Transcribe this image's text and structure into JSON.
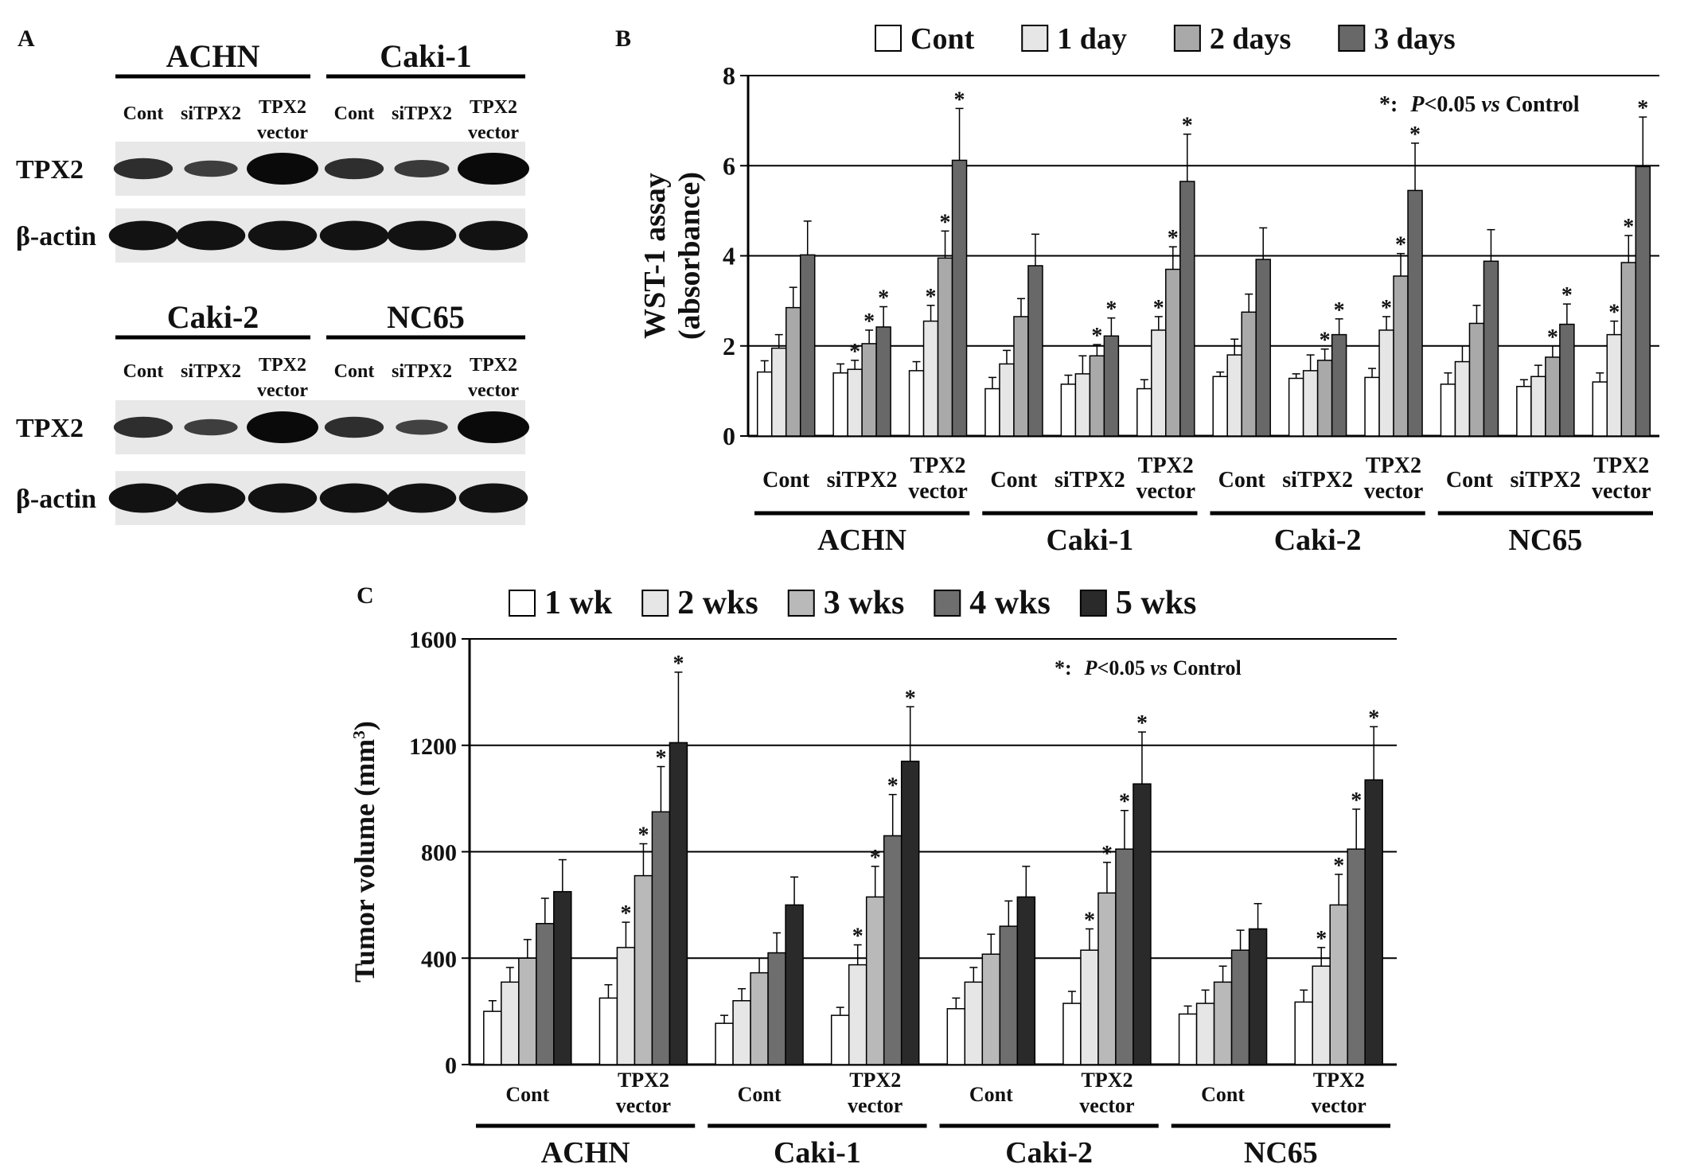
{
  "panels": {
    "A": {
      "letter": "A",
      "top": {
        "cell_lines": [
          "ACHN",
          "Caki-1"
        ],
        "lanes": [
          "Cont",
          "siTPX2",
          "TPX2 vector",
          "Cont",
          "siTPX2",
          "TPX2 vector"
        ],
        "rows": [
          "TPX2",
          "β-actin"
        ],
        "tpx2_intensity": [
          0.55,
          0.35,
          1.0,
          0.55,
          0.4,
          1.0
        ]
      },
      "bottom": {
        "cell_lines": [
          "Caki-2",
          "NC65"
        ],
        "lanes": [
          "Cont",
          "siTPX2",
          "TPX2 vector",
          "Cont",
          "siTPX2",
          "TPX2 vector"
        ],
        "rows": [
          "TPX2",
          "β-actin"
        ],
        "tpx2_intensity": [
          0.55,
          0.35,
          1.0,
          0.55,
          0.3,
          1.0
        ]
      }
    },
    "B": {
      "letter": "B",
      "annotation_star": "*:",
      "annotation_p": "P",
      "annotation_rest": "<0.05 ",
      "annotation_vs": "vs",
      "annotation_end": " Control"
    },
    "C": {
      "letter": "C",
      "annotation_star": "*:",
      "annotation_p": "P",
      "annotation_rest": "<0.05 ",
      "annotation_vs": "vs",
      "annotation_end": " Control"
    }
  },
  "chart_data": [
    {
      "panel": "B",
      "type": "bar",
      "ylabel": "WST-1 assay (absorbance)",
      "ylabel_lines": [
        "WST-1 assay",
        "(absorbance)"
      ],
      "ylim": [
        0,
        8
      ],
      "yticks": [
        0,
        2,
        4,
        6,
        8
      ],
      "grid": true,
      "legend_position": "top",
      "groups": [
        "ACHN",
        "Caki-1",
        "Caki-2",
        "NC65"
      ],
      "subgroups": [
        "Cont",
        "siTPX2",
        "TPX2 vector"
      ],
      "subgroup_labels": [
        [
          "Cont"
        ],
        [
          "siTPX2"
        ],
        [
          "TPX2",
          "vector"
        ]
      ],
      "series": [
        {
          "name": "Cont",
          "color": "#ffffff",
          "values": [
            1.42,
            1.4,
            1.45,
            1.05,
            1.15,
            1.05,
            1.32,
            1.28,
            1.3,
            1.15,
            1.1,
            1.2
          ],
          "errors": [
            0.25,
            0.2,
            0.2,
            0.25,
            0.2,
            0.2,
            0.1,
            0.1,
            0.2,
            0.25,
            0.15,
            0.2
          ],
          "star": [
            false,
            false,
            false,
            false,
            false,
            false,
            false,
            false,
            false,
            false,
            false,
            false
          ]
        },
        {
          "name": "1 day",
          "color": "#e6e6e6",
          "values": [
            1.95,
            1.48,
            2.55,
            1.6,
            1.38,
            2.35,
            1.8,
            1.45,
            2.35,
            1.65,
            1.32,
            2.25
          ],
          "errors": [
            0.3,
            0.2,
            0.35,
            0.3,
            0.4,
            0.3,
            0.35,
            0.35,
            0.3,
            0.35,
            0.25,
            0.3
          ],
          "star": [
            false,
            true,
            true,
            false,
            false,
            true,
            false,
            false,
            true,
            false,
            false,
            true
          ]
        },
        {
          "name": "2 days",
          "color": "#a9a9a9",
          "values": [
            2.85,
            2.05,
            3.95,
            2.65,
            1.78,
            3.7,
            2.75,
            1.68,
            3.55,
            2.5,
            1.75,
            3.85
          ],
          "errors": [
            0.45,
            0.3,
            0.6,
            0.4,
            0.25,
            0.5,
            0.4,
            0.25,
            0.5,
            0.4,
            0.25,
            0.6
          ],
          "star": [
            false,
            true,
            true,
            false,
            true,
            true,
            false,
            true,
            true,
            false,
            true,
            true
          ]
        },
        {
          "name": "3 days",
          "color": "#686868",
          "values": [
            4.02,
            2.42,
            6.12,
            3.78,
            2.22,
            5.65,
            3.92,
            2.25,
            5.45,
            3.88,
            2.48,
            5.98
          ],
          "errors": [
            0.75,
            0.45,
            1.15,
            0.7,
            0.4,
            1.05,
            0.7,
            0.35,
            1.05,
            0.7,
            0.45,
            1.1
          ],
          "star": [
            false,
            true,
            true,
            false,
            true,
            true,
            false,
            true,
            true,
            false,
            true,
            true
          ]
        }
      ]
    },
    {
      "panel": "C",
      "type": "bar",
      "ylabel": "Tumor volume (mm³)",
      "ylabel_main": "Tumor volume (mm",
      "ylabel_sup": "3",
      "ylabel_end": ")",
      "ylim": [
        0,
        1600
      ],
      "yticks": [
        0,
        400,
        800,
        1200,
        1600
      ],
      "grid": true,
      "legend_position": "top",
      "groups": [
        "ACHN",
        "Caki-1",
        "Caki-2",
        "NC65"
      ],
      "subgroups": [
        "Cont",
        "TPX2 vector"
      ],
      "subgroup_labels": [
        [
          "Cont"
        ],
        [
          "TPX2",
          "vector"
        ]
      ],
      "series": [
        {
          "name": "1 wk",
          "color": "#ffffff",
          "values": [
            200,
            250,
            155,
            185,
            210,
            230,
            190,
            235
          ],
          "errors": [
            40,
            50,
            30,
            30,
            40,
            45,
            30,
            45
          ],
          "star": [
            false,
            false,
            false,
            false,
            false,
            false,
            false,
            false
          ]
        },
        {
          "name": "2 wks",
          "color": "#e6e6e6",
          "values": [
            310,
            440,
            240,
            375,
            310,
            430,
            230,
            370
          ],
          "errors": [
            55,
            95,
            45,
            75,
            55,
            80,
            50,
            70
          ],
          "star": [
            false,
            true,
            false,
            true,
            false,
            true,
            false,
            true
          ]
        },
        {
          "name": "3 wks",
          "color": "#b9b9b9",
          "values": [
            400,
            710,
            345,
            630,
            415,
            645,
            310,
            600
          ],
          "errors": [
            70,
            120,
            55,
            115,
            75,
            115,
            60,
            115
          ],
          "star": [
            false,
            true,
            false,
            true,
            false,
            true,
            false,
            true
          ]
        },
        {
          "name": "4 wks",
          "color": "#6e6e6e",
          "values": [
            530,
            950,
            420,
            860,
            520,
            810,
            430,
            810
          ],
          "errors": [
            95,
            170,
            75,
            155,
            95,
            145,
            75,
            150
          ],
          "star": [
            false,
            true,
            false,
            true,
            false,
            true,
            false,
            true
          ]
        },
        {
          "name": "5 wks",
          "color": "#2a2a2a",
          "values": [
            650,
            1210,
            600,
            1140,
            630,
            1055,
            510,
            1070
          ],
          "errors": [
            120,
            265,
            105,
            205,
            115,
            195,
            95,
            200
          ],
          "star": [
            false,
            true,
            false,
            true,
            false,
            true,
            false,
            true
          ]
        }
      ]
    }
  ]
}
